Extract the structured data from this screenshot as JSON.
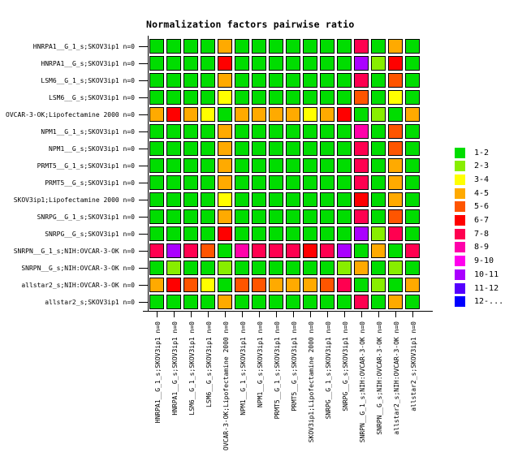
{
  "title": "Normalization factors pairwise ratio",
  "chart_data": {
    "type": "heatmap",
    "title": "Normalization factors pairwise ratio",
    "labels": [
      "HNRPA1__G_1_s;SKOV3ip1 n=0",
      "HNRPA1__G_s;SKOV3ip1 n=0",
      "LSM6__G_1_s;SKOV3ip1 n=0",
      "LSM6__G_s;SKOV3ip1 n=0",
      "OVCAR-3-OK;Lipofectamine 2000 n=0",
      "NPM1__G_1_s;SKOV3ip1 n=0",
      "NPM1__G_s;SKOV3ip1 n=0",
      "PRMT5__G_1_s;SKOV3ip1 n=0",
      "PRMT5__G_s;SKOV3ip1 n=0",
      "SKOV3ip1;Lipofectamine 2000 n=0",
      "SNRPG__G_1_s;SKOV3ip1 n=0",
      "SNRPG__G_s;SKOV3ip1 n=0",
      "SNRPN__G_1_s;NIH:OVCAR-3-OK n=0",
      "SNRPN__G_s;NIH:OVCAR-3-OK n=0",
      "allstar2_s;NIH:OVCAR-3-OK n=0",
      "allstar2_s;SKOV3ip1 n=0"
    ],
    "matrix": [
      [
        "G",
        "G",
        "G",
        "G",
        "O",
        "G",
        "G",
        "G",
        "G",
        "G",
        "G",
        "G",
        "CR",
        "G",
        "O",
        "G"
      ],
      [
        "G",
        "G",
        "G",
        "G",
        "R",
        "G",
        "G",
        "G",
        "G",
        "G",
        "G",
        "G",
        "V",
        "YG",
        "R",
        "G"
      ],
      [
        "G",
        "G",
        "G",
        "G",
        "O",
        "G",
        "G",
        "G",
        "G",
        "G",
        "G",
        "G",
        "CR",
        "G",
        "OR",
        "G"
      ],
      [
        "G",
        "G",
        "G",
        "G",
        "Y",
        "G",
        "G",
        "G",
        "G",
        "G",
        "G",
        "G",
        "OR",
        "G",
        "Y",
        "G"
      ],
      [
        "O",
        "R",
        "O",
        "Y",
        "G",
        "O",
        "O",
        "O",
        "O",
        "Y",
        "O",
        "R",
        "G",
        "YG",
        "G",
        "O"
      ],
      [
        "G",
        "G",
        "G",
        "G",
        "O",
        "G",
        "G",
        "G",
        "G",
        "G",
        "G",
        "G",
        "PK",
        "G",
        "OR",
        "G"
      ],
      [
        "G",
        "G",
        "G",
        "G",
        "O",
        "G",
        "G",
        "G",
        "G",
        "G",
        "G",
        "G",
        "CR",
        "G",
        "OR",
        "G"
      ],
      [
        "G",
        "G",
        "G",
        "G",
        "O",
        "G",
        "G",
        "G",
        "G",
        "G",
        "G",
        "G",
        "CR",
        "G",
        "O",
        "G"
      ],
      [
        "G",
        "G",
        "G",
        "G",
        "O",
        "G",
        "G",
        "G",
        "G",
        "G",
        "G",
        "G",
        "CR",
        "G",
        "O",
        "G"
      ],
      [
        "G",
        "G",
        "G",
        "G",
        "Y",
        "G",
        "G",
        "G",
        "G",
        "G",
        "G",
        "G",
        "R",
        "G",
        "O",
        "G"
      ],
      [
        "G",
        "G",
        "G",
        "G",
        "O",
        "G",
        "G",
        "G",
        "G",
        "G",
        "G",
        "G",
        "CR",
        "G",
        "OR",
        "G"
      ],
      [
        "G",
        "G",
        "G",
        "G",
        "R",
        "G",
        "G",
        "G",
        "G",
        "G",
        "G",
        "G",
        "V",
        "YG",
        "CR",
        "G"
      ],
      [
        "CR",
        "V",
        "CR",
        "OR",
        "G",
        "PK",
        "CR",
        "CR",
        "CR",
        "R",
        "CR",
        "V",
        "G",
        "O",
        "G",
        "CR"
      ],
      [
        "G",
        "YG",
        "G",
        "G",
        "YG",
        "G",
        "G",
        "G",
        "G",
        "G",
        "G",
        "YG",
        "O",
        "G",
        "YG",
        "G"
      ],
      [
        "O",
        "R",
        "OR",
        "Y",
        "G",
        "OR",
        "OR",
        "O",
        "O",
        "O",
        "OR",
        "CR",
        "G",
        "YG",
        "G",
        "O"
      ],
      [
        "G",
        "G",
        "G",
        "G",
        "O",
        "G",
        "G",
        "G",
        "G",
        "G",
        "G",
        "G",
        "CR",
        "G",
        "O",
        "G"
      ]
    ],
    "legend": [
      {
        "key": "G",
        "label": "1-2",
        "color": "#00DD00"
      },
      {
        "key": "YG",
        "label": "2-3",
        "color": "#88EE00"
      },
      {
        "key": "Y",
        "label": "3-4",
        "color": "#FFFF00"
      },
      {
        "key": "O",
        "label": "4-5",
        "color": "#FFAA00"
      },
      {
        "key": "OR",
        "label": "5-6",
        "color": "#FF5500"
      },
      {
        "key": "R",
        "label": "6-7",
        "color": "#FF0000"
      },
      {
        "key": "CR",
        "label": "7-8",
        "color": "#FF0050"
      },
      {
        "key": "PK",
        "label": "8-9",
        "color": "#FF00AA"
      },
      {
        "key": "M",
        "label": "9-10",
        "color": "#FF00EE"
      },
      {
        "key": "V",
        "label": "10-11",
        "color": "#AA00FF"
      },
      {
        "key": "BV",
        "label": "11-12",
        "color": "#5500FF"
      },
      {
        "key": "B",
        "label": "12-...",
        "color": "#0000FF"
      }
    ],
    "legend_position": "right",
    "grid": false
  }
}
